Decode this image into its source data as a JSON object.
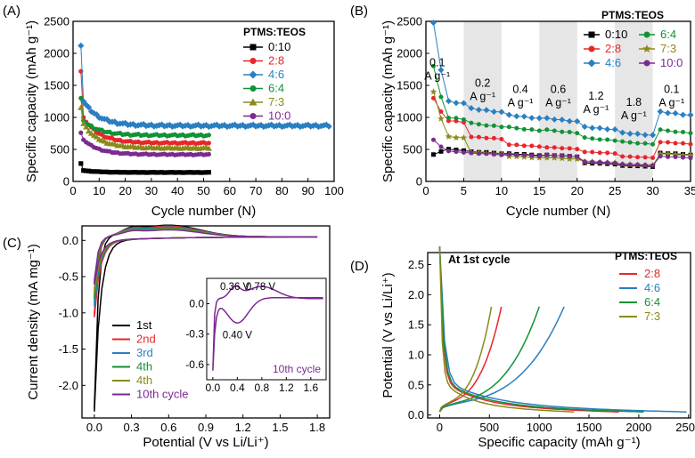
{
  "chart_data": [
    {
      "panel_label": "(A)",
      "type": "scatter",
      "xlabel": "Cycle number (N)",
      "ylabel": "Specific capacity (mAh g⁻¹)",
      "xlim": [
        0,
        100
      ],
      "ylim": [
        0,
        2500
      ],
      "xticks": [
        0,
        10,
        20,
        30,
        40,
        50,
        60,
        70,
        80,
        90,
        100
      ],
      "yticks": [
        0,
        500,
        1000,
        1500,
        2000,
        2500
      ],
      "legend_title": "PTMS:TEOS",
      "legend_position": "top-right",
      "series": [
        {
          "name": "0:10",
          "color": "#000000",
          "marker": "square",
          "first": 280,
          "second": 170,
          "steady": 140,
          "end": 52
        },
        {
          "name": "2:8",
          "color": "#e8262a",
          "marker": "circle",
          "first": 1720,
          "second": 1000,
          "steady": 600,
          "end": 52
        },
        {
          "name": "4:6",
          "color": "#2a7fc1",
          "marker": "diamond",
          "first": 2120,
          "second": 1250,
          "steady": 870,
          "end": 98
        },
        {
          "name": "6:4",
          "color": "#129237",
          "marker": "circle",
          "first": 1300,
          "second": 950,
          "steady": 720,
          "end": 52
        },
        {
          "name": "7:3",
          "color": "#8a8a1a",
          "marker": "triangle",
          "first": 1150,
          "second": 900,
          "steady": 520,
          "end": 52
        },
        {
          "name": "10:0",
          "color": "#7b2a90",
          "marker": "circle",
          "first": 760,
          "second": 650,
          "steady": 420,
          "end": 52
        }
      ]
    },
    {
      "panel_label": "(B)",
      "type": "scatter",
      "xlabel": "Cycle number (N)",
      "ylabel": "Specific capacity (mAh g⁻¹)",
      "xlim": [
        0,
        35
      ],
      "ylim": [
        0,
        2500
      ],
      "xticks": [
        0,
        5,
        10,
        15,
        20,
        25,
        30,
        35
      ],
      "yticks": [
        0,
        500,
        1000,
        1500,
        2000,
        2500
      ],
      "shaded_ranges": [
        [
          5,
          10
        ],
        [
          15,
          20
        ],
        [
          25,
          30
        ]
      ],
      "legend_title": "PTMS:TEOS",
      "legend_position": "top-right",
      "rate_labels": [
        {
          "text": "0.1",
          "unit": "A g⁻¹",
          "x": 1.5,
          "y": 1800
        },
        {
          "text": "0.2",
          "unit": "A g⁻¹",
          "x": 7.5,
          "y": 1480
        },
        {
          "text": "0.4",
          "unit": "A g⁻¹",
          "x": 12.5,
          "y": 1380
        },
        {
          "text": "0.6",
          "unit": "A g⁻¹",
          "x": 17.5,
          "y": 1380
        },
        {
          "text": "1.2",
          "unit": "A g⁻¹",
          "x": 22.5,
          "y": 1280
        },
        {
          "text": "1.8",
          "unit": "A g⁻¹",
          "x": 27.5,
          "y": 1180
        },
        {
          "text": "0.1",
          "unit": "A g⁻¹",
          "x": 32.5,
          "y": 1380
        }
      ],
      "series": [
        {
          "name": "0:10",
          "color": "#000000",
          "marker": "square",
          "first": 420,
          "levels": [
            500,
            450,
            420,
            400,
            280,
            240,
            430
          ]
        },
        {
          "name": "2:8",
          "color": "#e8262a",
          "marker": "circle",
          "first": 1300,
          "levels": [
            950,
            680,
            560,
            520,
            450,
            380,
            600
          ]
        },
        {
          "name": "4:6",
          "color": "#2a7fc1",
          "marker": "diamond",
          "first": 2480,
          "levels": [
            1250,
            1110,
            1010,
            960,
            830,
            740,
            1060
          ]
        },
        {
          "name": "6:4",
          "color": "#129237",
          "marker": "circle",
          "first": 1800,
          "levels": [
            1000,
            880,
            820,
            780,
            660,
            600,
            780
          ]
        },
        {
          "name": "7:3",
          "color": "#8a8a1a",
          "marker": "star",
          "first": 1400,
          "levels": [
            700,
            440,
            380,
            360,
            300,
            260,
            420
          ]
        },
        {
          "name": "10:0",
          "color": "#7b2a90",
          "marker": "circle",
          "first": 650,
          "levels": [
            470,
            430,
            410,
            400,
            300,
            260,
            380
          ]
        }
      ]
    },
    {
      "panel_label": "(C)",
      "type": "line",
      "xlabel": "Potential (V vs Li/Li⁺)",
      "ylabel": "Current density (mA mg⁻¹)",
      "xlim": [
        -0.1,
        1.9
      ],
      "ylim": [
        -2.45,
        0.2
      ],
      "xticks": [
        0.0,
        0.3,
        0.6,
        0.9,
        1.2,
        1.5,
        1.8
      ],
      "yticks": [
        0.0,
        -0.5,
        -1.0,
        -1.5,
        -2.0
      ],
      "legend_position": "bottom-left",
      "series": [
        {
          "name": "1st",
          "color": "#000000",
          "min_current": -2.35
        },
        {
          "name": "2nd",
          "color": "#e8262a",
          "min_current": -1.05
        },
        {
          "name": "3rd",
          "color": "#2a7fc1",
          "min_current": -0.9
        },
        {
          "name": "4th",
          "color": "#129237",
          "min_current": -0.8
        },
        {
          "name": "4th",
          "color": "#8a8a1a",
          "min_current": -0.72
        },
        {
          "name": "10th cycle",
          "color": "#7b2a90",
          "min_current": -0.6
        }
      ],
      "inset": {
        "label": "10th cycle",
        "xlim": [
          -0.1,
          1.85
        ],
        "ylim": [
          -0.75,
          0.25
        ],
        "xticks": [
          0.0,
          0.4,
          0.8,
          1.2,
          1.6
        ],
        "yticks": [
          0.0,
          -0.3,
          -0.6
        ],
        "annotations": [
          {
            "text": "0.36 V",
            "x": 0.36,
            "y": 0.12
          },
          {
            "text": "0.78 V",
            "x": 0.78,
            "y": 0.12
          },
          {
            "text": "0.40 V",
            "x": 0.4,
            "y": -0.22
          }
        ]
      }
    },
    {
      "panel_label": "(D)",
      "type": "line",
      "xlabel": "Specific capacity (mAh g⁻¹)",
      "ylabel": "Potential (V vs Li/Li⁺)",
      "xlim": [
        -120,
        2520
      ],
      "ylim": [
        -0.05,
        2.7
      ],
      "xticks": [
        0,
        500,
        1000,
        1500,
        2000,
        2500
      ],
      "yticks": [
        0.0,
        0.5,
        1.0,
        1.5,
        2.0,
        2.5
      ],
      "annotation": "At 1st cycle",
      "legend_title": "PTMS:TEOS",
      "legend_position": "top-right",
      "series": [
        {
          "name": "2:8",
          "color": "#e8262a",
          "discharge_capacity": 1800,
          "charge_capacity": 620
        },
        {
          "name": "4:6",
          "color": "#2a7fc1",
          "discharge_capacity": 2480,
          "charge_capacity": 1250
        },
        {
          "name": "6:4",
          "color": "#129237",
          "discharge_capacity": 2050,
          "charge_capacity": 1000
        },
        {
          "name": "7:3",
          "color": "#8a8a1a",
          "discharge_capacity": 1350,
          "charge_capacity": 520
        }
      ]
    }
  ]
}
